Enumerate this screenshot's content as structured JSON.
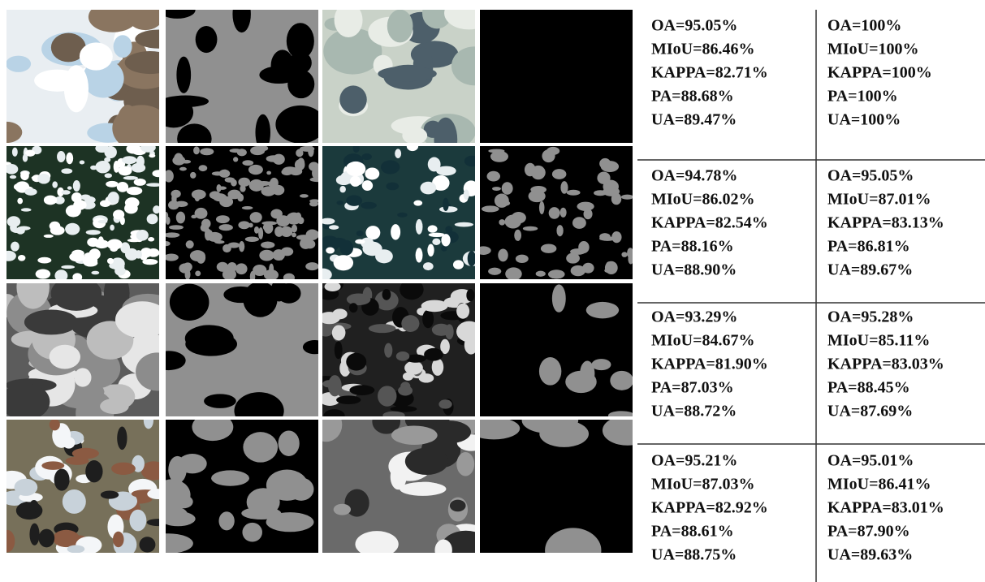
{
  "table": {
    "rows": [
      [
        [
          "OA=95.05%",
          "MIoU=86.46%",
          "KAPPA=82.71%",
          "PA=88.68%",
          "UA=89.47%"
        ],
        [
          "OA=100%",
          "MIoU=100%",
          "KAPPA=100%",
          "PA=100%",
          "UA=100%"
        ]
      ],
      [
        [
          "OA=94.78%",
          "MIoU=86.02%",
          "KAPPA=82.54%",
          "PA=88.16%",
          "UA=88.90%"
        ],
        [
          "OA=95.05%",
          "MIoU=87.01%",
          "KAPPA=83.13%",
          "PA=86.81%",
          "UA=89.67%"
        ]
      ],
      [
        [
          "OA=93.29%",
          "MIoU=84.67%",
          "KAPPA=81.90%",
          "PA=87.03%",
          "UA=88.72%"
        ],
        [
          "OA=95.28%",
          "MIoU=85.11%",
          "KAPPA=83.03%",
          "PA=88.45%",
          "UA=87.69%"
        ]
      ],
      [
        [
          "OA=95.21%",
          "MIoU=87.03%",
          "KAPPA=82.92%",
          "PA=88.61%",
          "UA=88.75%"
        ],
        [
          "OA=95.01%",
          "MIoU=86.41%",
          "KAPPA=83.01%",
          "PA=87.90%",
          "UA=89.63%"
        ]
      ]
    ]
  }
}
